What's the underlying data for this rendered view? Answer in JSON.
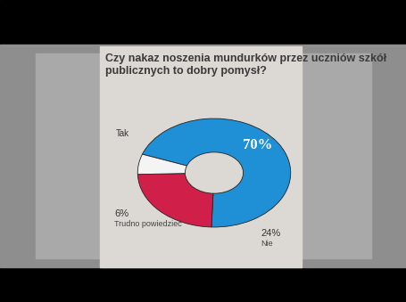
{
  "chart_data": {
    "type": "pie",
    "title": "Czy nakaz noszenia mundurków przez uczniów szkół publicznych to dobry pomysł?",
    "categories": [
      "Tak",
      "Nie",
      "Trudno powiedzieć"
    ],
    "values": [
      70,
      24,
      6
    ],
    "value_labels": [
      "70%",
      "24%",
      "6%"
    ],
    "colors": [
      "#1f8fd6",
      "#d0204a",
      "#f4f4f4"
    ],
    "data_labels": true
  }
}
